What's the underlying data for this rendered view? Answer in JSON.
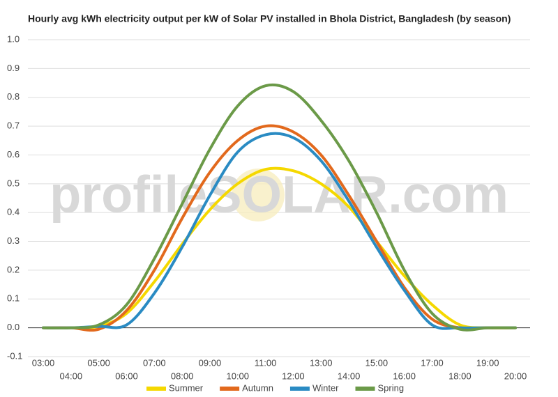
{
  "chart_data": {
    "type": "line",
    "title": "Hourly avg kWh electricity output per kW of Solar PV installed in Bhola District, Bangladesh (by season)",
    "watermark": "profileSOLAR.com",
    "categories": [
      "03:00",
      "04:00",
      "05:00",
      "06:00",
      "07:00",
      "08:00",
      "09:00",
      "10:00",
      "11:00",
      "12:00",
      "13:00",
      "14:00",
      "15:00",
      "16:00",
      "17:00",
      "18:00",
      "19:00",
      "20:00"
    ],
    "series": [
      {
        "name": "Summer",
        "color": "#f5d800",
        "values": [
          0,
          0,
          0.005,
          0.05,
          0.16,
          0.29,
          0.41,
          0.5,
          0.55,
          0.545,
          0.5,
          0.42,
          0.3,
          0.18,
          0.08,
          0.01,
          0,
          0
        ]
      },
      {
        "name": "Autumn",
        "color": "#e2691d",
        "values": [
          0,
          0,
          -0.005,
          0.06,
          0.2,
          0.38,
          0.54,
          0.65,
          0.7,
          0.68,
          0.6,
          0.46,
          0.3,
          0.14,
          0.03,
          0,
          0,
          0
        ]
      },
      {
        "name": "Winter",
        "color": "#2a8bc3",
        "values": [
          0,
          0,
          0.005,
          0.01,
          0.12,
          0.28,
          0.46,
          0.61,
          0.67,
          0.66,
          0.58,
          0.44,
          0.28,
          0.13,
          0.01,
          0,
          0,
          0
        ]
      },
      {
        "name": "Spring",
        "color": "#6b9a48",
        "values": [
          0,
          0,
          0.01,
          0.08,
          0.24,
          0.43,
          0.62,
          0.77,
          0.84,
          0.82,
          0.72,
          0.58,
          0.4,
          0.2,
          0.05,
          -0.005,
          0,
          0
        ]
      }
    ],
    "ylim": [
      -0.1,
      1.0
    ],
    "yticks": [
      -0.1,
      {
        "value": 0,
        "label": "0.0"
      },
      0.1,
      0.2,
      0.3,
      0.4,
      0.5,
      0.6,
      0.7,
      0.8,
      0.9,
      {
        "value": 1,
        "label": "1.0"
      }
    ],
    "grid": true
  }
}
